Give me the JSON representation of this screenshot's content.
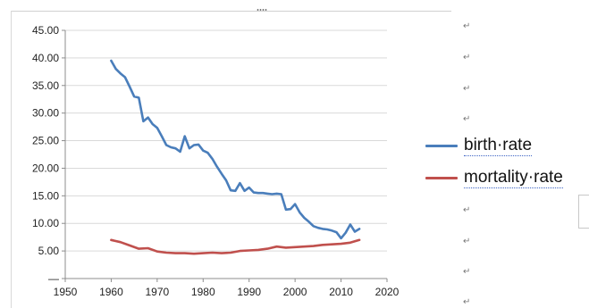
{
  "chart_data": {
    "type": "line",
    "title": "",
    "xlabel": "",
    "ylabel": "",
    "xlim": [
      1950,
      2020
    ],
    "ylim": [
      0,
      45
    ],
    "x_ticks": [
      "1950",
      "1960",
      "1970",
      "1980",
      "1990",
      "2000",
      "2010",
      "2020"
    ],
    "y_ticks": [
      "45.00",
      "40.00",
      "35.00",
      "30.00",
      "25.00",
      "20.00",
      "15.00",
      "10.00",
      "5.00",
      "—"
    ],
    "grid": {
      "horizontal": true,
      "vertical": false
    },
    "legend_position": "right",
    "series": [
      {
        "name": "birth·rate",
        "color": "#4a7ebb",
        "points": [
          [
            1960,
            39.5
          ],
          [
            1961,
            38.0
          ],
          [
            1962,
            37.2
          ],
          [
            1963,
            36.5
          ],
          [
            1964,
            34.8
          ],
          [
            1965,
            33.0
          ],
          [
            1966,
            32.8
          ],
          [
            1967,
            28.5
          ],
          [
            1968,
            29.2
          ],
          [
            1969,
            28.0
          ],
          [
            1970,
            27.3
          ],
          [
            1971,
            25.8
          ],
          [
            1972,
            24.2
          ],
          [
            1973,
            23.8
          ],
          [
            1974,
            23.6
          ],
          [
            1975,
            23.0
          ],
          [
            1976,
            25.8
          ],
          [
            1977,
            23.6
          ],
          [
            1978,
            24.2
          ],
          [
            1979,
            24.3
          ],
          [
            1980,
            23.2
          ],
          [
            1981,
            22.8
          ],
          [
            1982,
            21.7
          ],
          [
            1983,
            20.3
          ],
          [
            1984,
            19.0
          ],
          [
            1985,
            17.8
          ],
          [
            1986,
            16.0
          ],
          [
            1987,
            15.9
          ],
          [
            1988,
            17.3
          ],
          [
            1989,
            15.9
          ],
          [
            1990,
            16.5
          ],
          [
            1991,
            15.6
          ],
          [
            1992,
            15.5
          ],
          [
            1993,
            15.5
          ],
          [
            1994,
            15.4
          ],
          [
            1995,
            15.3
          ],
          [
            1996,
            15.4
          ],
          [
            1997,
            15.3
          ],
          [
            1998,
            12.5
          ],
          [
            1999,
            12.6
          ],
          [
            2000,
            13.5
          ],
          [
            2001,
            12.0
          ],
          [
            2002,
            11.0
          ],
          [
            2003,
            10.3
          ],
          [
            2004,
            9.5
          ],
          [
            2005,
            9.2
          ],
          [
            2006,
            9.0
          ],
          [
            2007,
            8.9
          ],
          [
            2008,
            8.7
          ],
          [
            2009,
            8.4
          ],
          [
            2010,
            7.3
          ],
          [
            2011,
            8.3
          ],
          [
            2012,
            9.8
          ],
          [
            2013,
            8.5
          ],
          [
            2014,
            9.0
          ]
        ]
      },
      {
        "name": "mortality·rate",
        "color": "#c0504d",
        "points": [
          [
            1960,
            7.0
          ],
          [
            1962,
            6.6
          ],
          [
            1964,
            6.0
          ],
          [
            1966,
            5.4
          ],
          [
            1968,
            5.5
          ],
          [
            1970,
            4.9
          ],
          [
            1972,
            4.7
          ],
          [
            1974,
            4.6
          ],
          [
            1976,
            4.6
          ],
          [
            1978,
            4.5
          ],
          [
            1980,
            4.6
          ],
          [
            1982,
            4.7
          ],
          [
            1984,
            4.6
          ],
          [
            1986,
            4.7
          ],
          [
            1988,
            5.0
          ],
          [
            1990,
            5.1
          ],
          [
            1992,
            5.2
          ],
          [
            1994,
            5.4
          ],
          [
            1996,
            5.8
          ],
          [
            1998,
            5.6
          ],
          [
            2000,
            5.7
          ],
          [
            2002,
            5.8
          ],
          [
            2004,
            5.9
          ],
          [
            2006,
            6.1
          ],
          [
            2008,
            6.2
          ],
          [
            2010,
            6.3
          ],
          [
            2012,
            6.5
          ],
          [
            2014,
            7.0
          ]
        ]
      }
    ]
  }
}
